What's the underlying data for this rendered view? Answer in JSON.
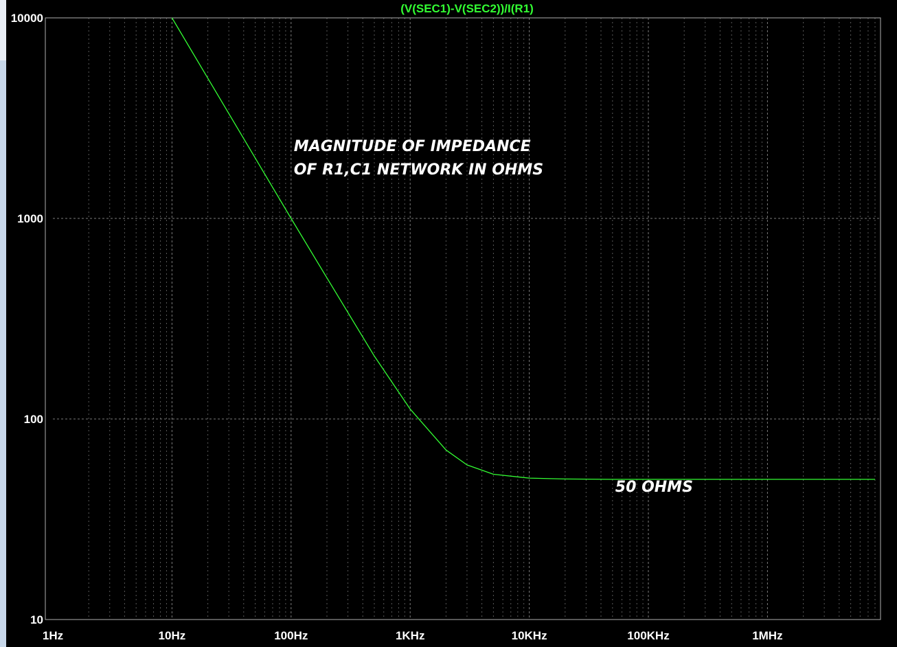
{
  "chart_data": {
    "type": "line",
    "title": "(V(SEC1)-V(SEC2))/I(R1)",
    "xscale": "log",
    "yscale": "log",
    "xlim": [
      1,
      8000000
    ],
    "ylim": [
      10,
      10000
    ],
    "xticks": [
      {
        "value": 1,
        "label": "1Hz"
      },
      {
        "value": 10,
        "label": "10Hz"
      },
      {
        "value": 100,
        "label": "100Hz"
      },
      {
        "value": 1000,
        "label": "1KHz"
      },
      {
        "value": 10000,
        "label": "10KHz"
      },
      {
        "value": 100000,
        "label": "100KHz"
      },
      {
        "value": 1000000,
        "label": "1MHz"
      }
    ],
    "yticks": [
      {
        "value": 10,
        "label": "10"
      },
      {
        "value": 100,
        "label": "100"
      },
      {
        "value": 1000,
        "label": "1000"
      },
      {
        "value": 10000,
        "label": "10000"
      }
    ],
    "grid": true,
    "series": [
      {
        "name": "(V(SEC1)-V(SEC2))/I(R1)",
        "color": "#33ff33",
        "x": [
          10,
          20,
          50,
          100,
          200,
          500,
          1000,
          2000,
          3000,
          5000,
          10000,
          20000,
          50000,
          100000,
          1000000,
          8000000
        ],
        "y": [
          10000,
          5000,
          2000,
          1000,
          505,
          206,
          112,
          70,
          59,
          53,
          50.7,
          50.2,
          50,
          50,
          50,
          50
        ]
      }
    ],
    "annotations": [
      {
        "lines": [
          "MAGNITUDE OF IMPEDANCE",
          "OF R1,C1 NETWORK  IN OHMS"
        ],
        "x": 100,
        "y": 2000
      },
      {
        "lines": [
          "50 OHMS"
        ],
        "x": 50000,
        "y": 40
      }
    ]
  }
}
